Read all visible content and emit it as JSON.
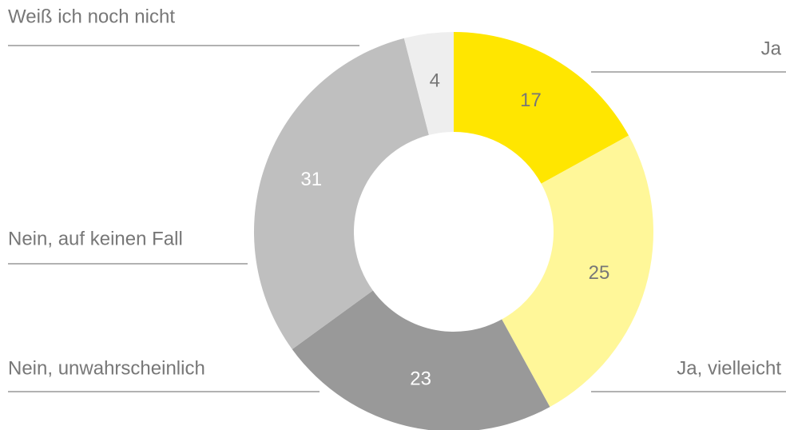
{
  "chart_data": {
    "type": "donut",
    "categories": [
      "Ja",
      "Ja, vielleicht",
      "Nein, unwahrscheinlich",
      "Nein, auf keinen Fall",
      "Weiß ich noch nicht"
    ],
    "values": [
      17,
      25,
      23,
      31,
      4
    ],
    "colors": [
      "#ffe600",
      "#fff799",
      "#999999",
      "#bfbfbf",
      "#eeeeee"
    ]
  }
}
